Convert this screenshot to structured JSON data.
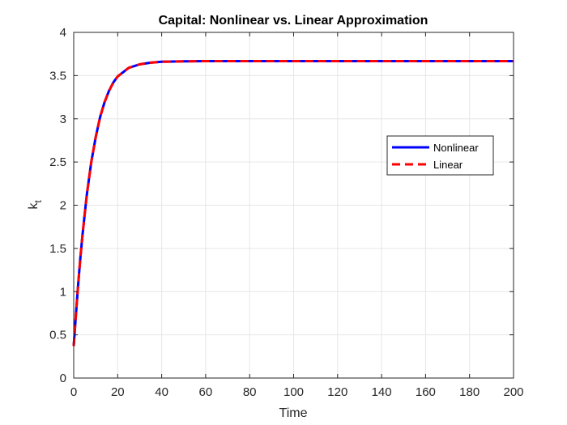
{
  "chart_data": {
    "type": "line",
    "title": "Capital: Nonlinear vs. Linear Approximation",
    "xlabel": "Time",
    "ylabel_base": "k",
    "ylabel_sub": "t",
    "xlim": [
      0,
      200
    ],
    "ylim": [
      0,
      4
    ],
    "x_ticks": [
      0,
      20,
      40,
      60,
      80,
      100,
      120,
      140,
      160,
      180,
      200
    ],
    "y_ticks": [
      0,
      0.5,
      1,
      1.5,
      2,
      2.5,
      3,
      3.5,
      4
    ],
    "x_tick_labels": [
      "0",
      "20",
      "40",
      "60",
      "80",
      "100",
      "120",
      "140",
      "160",
      "180",
      "200"
    ],
    "y_tick_labels": [
      "0",
      "0.5",
      "1",
      "1.5",
      "2",
      "2.5",
      "3",
      "3.5",
      "4"
    ],
    "grid": true,
    "legend_position": "right, mid-upper",
    "series": [
      {
        "name": "Nonlinear",
        "color": "#0000ff",
        "style": "solid",
        "x": [
          0,
          1,
          2,
          3,
          4,
          5,
          6,
          8,
          10,
          12,
          14,
          16,
          18,
          20,
          25,
          30,
          35,
          40,
          50,
          60,
          80,
          100,
          120,
          140,
          160,
          180,
          200
        ],
        "y": [
          0.37,
          0.73,
          1.07,
          1.38,
          1.66,
          1.9,
          2.13,
          2.5,
          2.79,
          3.02,
          3.19,
          3.32,
          3.42,
          3.49,
          3.59,
          3.63,
          3.65,
          3.66,
          3.665,
          3.667,
          3.667,
          3.667,
          3.667,
          3.667,
          3.667,
          3.667,
          3.667
        ]
      },
      {
        "name": "Linear",
        "color": "#ff0000",
        "style": "dashed",
        "x": [
          0,
          1,
          2,
          3,
          4,
          5,
          6,
          8,
          10,
          12,
          14,
          16,
          18,
          20,
          25,
          30,
          35,
          40,
          50,
          60,
          80,
          100,
          120,
          140,
          160,
          180,
          200
        ],
        "y": [
          0.37,
          0.73,
          1.07,
          1.38,
          1.66,
          1.9,
          2.13,
          2.5,
          2.79,
          3.02,
          3.19,
          3.32,
          3.42,
          3.49,
          3.59,
          3.63,
          3.65,
          3.66,
          3.665,
          3.667,
          3.667,
          3.667,
          3.667,
          3.667,
          3.667,
          3.667,
          3.667
        ]
      }
    ]
  }
}
